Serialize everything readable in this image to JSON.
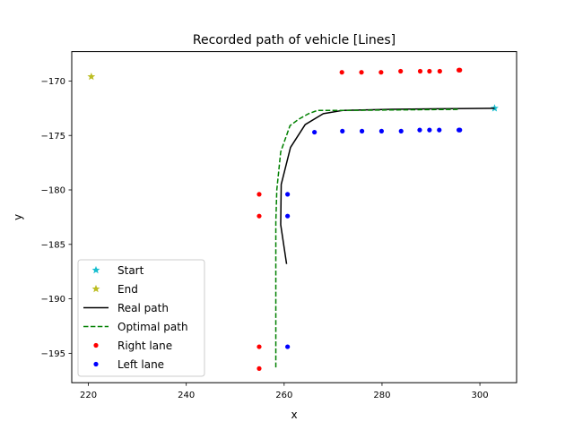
{
  "chart_data": {
    "type": "line",
    "title": "Recorded path of vehicle [Lines]",
    "xlabel": "x",
    "ylabel": "y",
    "xlim": [
      216.6,
      307.5
    ],
    "ylim": [
      -197.7,
      -167.3
    ],
    "xticks": [
      220,
      240,
      260,
      280,
      300
    ],
    "yticks": [
      -195,
      -190,
      -185,
      -180,
      -175,
      -170
    ],
    "grid": false,
    "legend_position": "lower-left",
    "series": [
      {
        "name": "Start",
        "kind": "marker",
        "marker": "star",
        "color": "#17becf",
        "points": [
          [
            303.0,
            -172.5
          ]
        ]
      },
      {
        "name": "End",
        "kind": "marker",
        "marker": "star",
        "color": "#bcbd22",
        "points": [
          [
            220.6,
            -169.6
          ]
        ]
      },
      {
        "name": "Real path",
        "kind": "line",
        "style": "solid",
        "color": "#000000",
        "points": [
          [
            260.5,
            -186.8
          ],
          [
            259.3,
            -183.2
          ],
          [
            259.4,
            -179.5
          ],
          [
            261.3,
            -176.1
          ],
          [
            264.3,
            -174.0
          ],
          [
            268.0,
            -173.0
          ],
          [
            272.0,
            -172.7
          ],
          [
            282.0,
            -172.6
          ],
          [
            292.0,
            -172.55
          ],
          [
            303.0,
            -172.5
          ]
        ]
      },
      {
        "name": "Optimal path",
        "kind": "line",
        "style": "dashed",
        "color": "#008000",
        "points": [
          [
            258.3,
            -196.3
          ],
          [
            258.3,
            -183.0
          ],
          [
            258.5,
            -180.0
          ],
          [
            259.3,
            -176.5
          ],
          [
            261.2,
            -174.1
          ],
          [
            263.0,
            -173.5
          ],
          [
            265.0,
            -173.0
          ],
          [
            266.8,
            -172.7
          ],
          [
            272.0,
            -172.7
          ],
          [
            295.8,
            -172.6
          ]
        ]
      },
      {
        "name": "Right lane",
        "kind": "marker",
        "marker": "dot",
        "color": "#ff0000",
        "points": [
          [
            254.9,
            -180.4
          ],
          [
            254.9,
            -182.4
          ],
          [
            254.9,
            -194.4
          ],
          [
            254.9,
            -196.4
          ],
          [
            271.8,
            -169.2
          ],
          [
            275.8,
            -169.2
          ],
          [
            279.8,
            -169.2
          ],
          [
            283.8,
            -169.1
          ],
          [
            287.8,
            -169.1
          ],
          [
            289.7,
            -169.1
          ],
          [
            291.8,
            -169.1
          ],
          [
            295.7,
            -169.0
          ],
          [
            295.9,
            -169.0
          ]
        ]
      },
      {
        "name": "Left lane",
        "kind": "marker",
        "marker": "dot",
        "color": "#0000ff",
        "points": [
          [
            260.7,
            -180.4
          ],
          [
            260.7,
            -182.4
          ],
          [
            260.7,
            -194.4
          ],
          [
            266.2,
            -174.7
          ],
          [
            271.9,
            -174.6
          ],
          [
            275.9,
            -174.6
          ],
          [
            279.9,
            -174.6
          ],
          [
            283.9,
            -174.6
          ],
          [
            287.7,
            -174.5
          ],
          [
            289.7,
            -174.5
          ],
          [
            291.7,
            -174.5
          ],
          [
            295.7,
            -174.5
          ],
          [
            295.9,
            -174.5
          ]
        ]
      }
    ]
  }
}
